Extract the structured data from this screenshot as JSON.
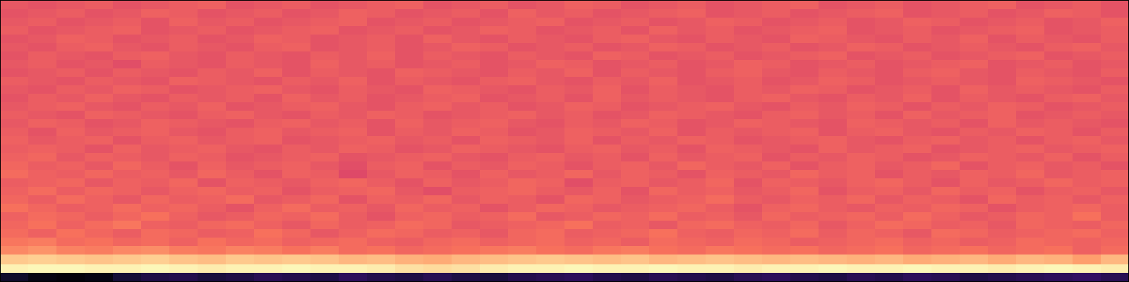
{
  "chart_data": {
    "type": "heatmap",
    "tick_labels": false,
    "xlim": [
      0,
      40
    ],
    "ylim": [
      0,
      100
    ],
    "zlim": [
      -80,
      0
    ],
    "y_edges": [
      0,
      3.5,
      6.5,
      10,
      13,
      16,
      19,
      22,
      25,
      28,
      31,
      34,
      37,
      40,
      43,
      46,
      49,
      52,
      55,
      58,
      61,
      64,
      67,
      70,
      73,
      76,
      79,
      82,
      85,
      88,
      91,
      94,
      97,
      100
    ],
    "cells": [
      [
        -74,
        -78,
        -79,
        -78,
        -72,
        -70,
        -69,
        -71,
        -70,
        -68,
        -69,
        -70,
        -67,
        -69,
        -70,
        -68,
        -70,
        -71,
        -69,
        -68,
        -67,
        -69,
        -70,
        -68,
        -69,
        -70,
        -68,
        -67,
        -69,
        -70,
        -68,
        -69,
        -67,
        -68,
        -70,
        -69,
        -68,
        -67,
        -66,
        -68
      ],
      [
        -2,
        -1,
        -1,
        -2,
        -2,
        -1,
        -2,
        -3,
        -2,
        -2,
        -1,
        -2,
        -2,
        -3,
        -5,
        -6,
        -5,
        -3,
        -2,
        -2,
        -1,
        -2,
        -2,
        -1,
        -2,
        -2,
        -3,
        -2,
        -2,
        -1,
        -2,
        -2,
        -1,
        -2,
        -2,
        -3,
        -2,
        -1,
        -2,
        -3
      ],
      [
        -9,
        -8,
        -9,
        -10,
        -9,
        -8,
        -10,
        -11,
        -9,
        -10,
        -9,
        -10,
        -12,
        -11,
        -13,
        -14,
        -12,
        -11,
        -10,
        -9,
        -10,
        -11,
        -10,
        -12,
        -11,
        -10,
        -11,
        -12,
        -11,
        -12,
        -13,
        -12,
        -14,
        -13,
        -12,
        -14,
        -12,
        -13,
        -16,
        -12
      ],
      [
        -20,
        -18,
        -21,
        -22,
        -20,
        -19,
        -22,
        -23,
        -21,
        -22,
        -24,
        -22,
        -25,
        -24,
        -26,
        -25,
        -24,
        -23,
        -22,
        -24,
        -25,
        -23,
        -22,
        -24,
        -25,
        -23,
        -24,
        -25,
        -24,
        -26,
        -25,
        -24,
        -26,
        -25,
        -24,
        -26,
        -25,
        -24,
        -27,
        -25
      ],
      [
        -23,
        -22,
        -25,
        -24,
        -26,
        -25,
        -27,
        -24,
        -26,
        -25,
        -27,
        -26,
        -25,
        -27,
        -28,
        -26,
        -25,
        -27,
        -26,
        -25,
        -27,
        -26,
        -28,
        -25,
        -26,
        -27,
        -25,
        -26,
        -28,
        -27,
        -26,
        -25,
        -27,
        -26,
        -28,
        -27,
        -25,
        -26,
        -27,
        -26
      ],
      [
        -25,
        -27,
        -24,
        -26,
        -28,
        -25,
        -26,
        -28,
        -27,
        -24,
        -26,
        -29,
        -27,
        -25,
        -26,
        -28,
        -27,
        -29,
        -26,
        -25,
        -28,
        -27,
        -26,
        -24,
        -27,
        -28,
        -26,
        -27,
        -25,
        -28,
        -26,
        -27,
        -29,
        -25,
        -26,
        -28,
        -27,
        -26,
        -25,
        -27
      ],
      [
        -26,
        -24,
        -27,
        -25,
        -23,
        -27,
        -28,
        -26,
        -25,
        -27,
        -29,
        -26,
        -28,
        -27,
        -25,
        -26,
        -29,
        -28,
        -27,
        -26,
        -24,
        -28,
        -27,
        -29,
        -26,
        -25,
        -27,
        -28,
        -26,
        -29,
        -27,
        -25,
        -26,
        -28,
        -27,
        -29,
        -26,
        -27,
        -28,
        -26
      ],
      [
        -27,
        -25,
        -26,
        -28,
        -26,
        -24,
        -27,
        -29,
        -28,
        -26,
        -27,
        -25,
        -28,
        -30,
        -27,
        -26,
        -28,
        -27,
        -25,
        -29,
        -28,
        -26,
        -27,
        -25,
        -28,
        -27,
        -29,
        -26,
        -28,
        -27,
        -26,
        -28,
        -25,
        -27,
        -29,
        -28,
        -26,
        -27,
        -24,
        -28
      ],
      [
        -24,
        -26,
        -28,
        -27,
        -25,
        -27,
        -26,
        -28,
        -30,
        -27,
        -25,
        -28,
        -27,
        -29,
        -26,
        -28,
        -27,
        -30,
        -28,
        -26,
        -27,
        -29,
        -28,
        -27,
        -26,
        -28,
        -30,
        -27,
        -26,
        -28,
        -29,
        -27,
        -28,
        -26,
        -27,
        -30,
        -28,
        -27,
        -26,
        -28
      ],
      [
        -26,
        -28,
        -25,
        -27,
        -29,
        -26,
        -28,
        -27,
        -25,
        -29,
        -28,
        -26,
        -30,
        -27,
        -28,
        -26,
        -29,
        -27,
        -28,
        -30,
        -26,
        -27,
        -29,
        -28,
        -27,
        -25,
        -28,
        -29,
        -27,
        -28,
        -26,
        -29,
        -27,
        -28,
        -30,
        -26,
        -28,
        -27,
        -29,
        -27
      ],
      [
        -27,
        -25,
        -28,
        -26,
        -27,
        -29,
        -27,
        -26,
        -28,
        -27,
        -30,
        -28,
        -27,
        -26,
        -29,
        -31,
        -28,
        -27,
        -26,
        -28,
        -29,
        -27,
        -30,
        -26,
        -28,
        -27,
        -29,
        -28,
        -26,
        -30,
        -28,
        -27,
        -29,
        -26,
        -28,
        -27,
        -30,
        -28,
        -27,
        -29
      ],
      [
        -28,
        -27,
        -26,
        -29,
        -27,
        -28,
        -26,
        -30,
        -27,
        -28,
        -29,
        -27,
        -26,
        -28,
        -30,
        -27,
        -29,
        -28,
        -26,
        -27,
        -31,
        -28,
        -27,
        -29,
        -28,
        -26,
        -30,
        -27,
        -28,
        -29,
        -27,
        -26,
        -28,
        -30,
        -27,
        -29,
        -28,
        -26,
        -28,
        -27
      ],
      [
        -25,
        -27,
        -28,
        -26,
        -28,
        -27,
        -29,
        -26,
        -28,
        -30,
        -27,
        -28,
        -32,
        -29,
        -27,
        -28,
        -30,
        -27,
        -29,
        -28,
        -26,
        -29,
        -27,
        -28,
        -30,
        -27,
        -28,
        -29,
        -26,
        -28,
        -27,
        -30,
        -28,
        -29,
        -27,
        -28,
        -26,
        -29,
        -28,
        -27
      ],
      [
        -26,
        -28,
        -27,
        -29,
        -26,
        -28,
        -30,
        -27,
        -29,
        -28,
        -27,
        -29,
        -31,
        -28,
        -27,
        -30,
        -28,
        -29,
        -27,
        -28,
        -30,
        -28,
        -27,
        -29,
        -26,
        -28,
        -29,
        -27,
        -30,
        -28,
        -27,
        -29,
        -28,
        -26,
        -30,
        -28,
        -27,
        -29,
        -28,
        -30
      ],
      [
        -27,
        -26,
        -29,
        -27,
        -28,
        -29,
        -27,
        -28,
        -30,
        -29,
        -28,
        -27,
        -30,
        -29,
        -28,
        -27,
        -29,
        -30,
        -28,
        -27,
        -29,
        -28,
        -30,
        -27,
        -29,
        -28,
        -27,
        -30,
        -28,
        -29,
        -27,
        -28,
        -30,
        -29,
        -27,
        -28,
        -29,
        -27,
        -30,
        -28
      ],
      [
        -28,
        -27,
        -28,
        -30,
        -27,
        -29,
        -28,
        -27,
        -29,
        -30,
        -28,
        -29,
        -27,
        -28,
        -30,
        -29,
        -27,
        -28,
        -29,
        -30,
        -28,
        -27,
        -29,
        -28,
        -30,
        -27,
        -28,
        -29,
        -30,
        -27,
        -29,
        -28,
        -27,
        -30,
        -29,
        -28,
        -27,
        -29,
        -28,
        -27
      ],
      [
        -27,
        -29,
        -28,
        -27,
        -30,
        -28,
        -27,
        -29,
        -28,
        -27,
        -30,
        -29,
        -28,
        -27,
        -29,
        -28,
        -30,
        -27,
        -28,
        -29,
        -27,
        -30,
        -28,
        -29,
        -27,
        -28,
        -30,
        -29,
        -28,
        -27,
        -29,
        -30,
        -28,
        -27,
        -29,
        -28,
        -30,
        -28,
        -27,
        -29
      ],
      [
        -28,
        -30,
        -27,
        -29,
        -28,
        -27,
        -29,
        -30,
        -28,
        -27,
        -29,
        -28,
        -27,
        -30,
        -28,
        -29,
        -27,
        -28,
        -30,
        -29,
        -27,
        -28,
        -29,
        -27,
        -30,
        -28,
        -29,
        -28,
        -27,
        -30,
        -28,
        -27,
        -29,
        -30,
        -28,
        -29,
        -27,
        -28,
        -30,
        -28
      ],
      [
        -29,
        -27,
        -28,
        -30,
        -29,
        -27,
        -28,
        -29,
        -30,
        -28,
        -27,
        -29,
        -28,
        -30,
        -27,
        -29,
        -28,
        -27,
        -29,
        -30,
        -28,
        -29,
        -27,
        -28,
        -30,
        -29,
        -27,
        -28,
        -29,
        -30,
        -27,
        -28,
        -29,
        -28,
        -30,
        -27,
        -29,
        -28,
        -29,
        -30
      ],
      [
        -28,
        -29,
        -30,
        -27,
        -28,
        -29,
        -30,
        -28,
        -27,
        -29,
        -30,
        -28,
        -29,
        -27,
        -28,
        -30,
        -29,
        -28,
        -27,
        -29,
        -28,
        -30,
        -29,
        -27,
        -28,
        -29,
        -30,
        -28,
        -27,
        -29,
        -28,
        -30,
        -27,
        -29,
        -28,
        -27,
        -30,
        -29,
        -28,
        -29
      ],
      [
        -29,
        -28,
        -27,
        -29,
        -30,
        -28,
        -29,
        -27,
        -30,
        -29,
        -28,
        -27,
        -29,
        -30,
        -28,
        -27,
        -29,
        -28,
        -30,
        -29,
        -27,
        -28,
        -30,
        -29,
        -28,
        -27,
        -29,
        -30,
        -28,
        -29,
        -27,
        -28,
        -30,
        -28,
        -29,
        -27,
        -28,
        -30,
        -29,
        -28
      ],
      [
        -30,
        -28,
        -29,
        -27,
        -29,
        -30,
        -28,
        -29,
        -28,
        -30,
        -27,
        -29,
        -28,
        -30,
        -29,
        -28,
        -27,
        -30,
        -29,
        -28,
        -30,
        -27,
        -29,
        -28,
        -29,
        -30,
        -28,
        -27,
        -29,
        -30,
        -28,
        -29,
        -27,
        -30,
        -28,
        -29,
        -30,
        -28,
        -27,
        -29
      ],
      [
        -29,
        -30,
        -28,
        -29,
        -27,
        -28,
        -30,
        -29,
        -28,
        -27,
        -29,
        -30,
        -28,
        -29,
        -30,
        -27,
        -28,
        -29,
        -30,
        -28,
        -29,
        -27,
        -30,
        -28,
        -29,
        -30,
        -28,
        -29,
        -27,
        -28,
        -30,
        -29,
        -28,
        -30,
        -27,
        -29,
        -28,
        -29,
        -30,
        -28
      ],
      [
        -28,
        -29,
        -30,
        -28,
        -29,
        -30,
        -27,
        -28,
        -29,
        -30,
        -28,
        -29,
        -27,
        -30,
        -28,
        -29,
        -30,
        -28,
        -27,
        -29,
        -30,
        -28,
        -29,
        -27,
        -30,
        -29,
        -28,
        -30,
        -29,
        -27,
        -28,
        -30,
        -29,
        -28,
        -29,
        -30,
        -27,
        -28,
        -29,
        -30
      ],
      [
        -30,
        -29,
        -28,
        -30,
        -28,
        -29,
        -30,
        -28,
        -29,
        -27,
        -30,
        -28,
        -29,
        -30,
        -27,
        -28,
        -29,
        -30,
        -28,
        -29,
        -27,
        -30,
        -28,
        -29,
        -30,
        -28,
        -27,
        -29,
        -30,
        -28,
        -29,
        -30,
        -28,
        -27,
        -29,
        -30,
        -28,
        -29,
        -30,
        -28
      ],
      [
        -29,
        -28,
        -30,
        -29,
        -31,
        -28,
        -29,
        -30,
        -28,
        -29,
        -30,
        -27,
        -29,
        -28,
        -30,
        -29,
        -28,
        -30,
        -29,
        -27,
        -28,
        -30,
        -29,
        -28,
        -30,
        -29,
        -27,
        -28,
        -30,
        -29,
        -28,
        -30,
        -29,
        -28,
        -27,
        -30,
        -29,
        -28,
        -30,
        -29
      ],
      [
        -30,
        -28,
        -29,
        -30,
        -28,
        -27,
        -29,
        -30,
        -28,
        -29,
        -30,
        -28,
        -29,
        -27,
        -30,
        -28,
        -29,
        -30,
        -28,
        -29,
        -30,
        -27,
        -28,
        -30,
        -29,
        -28,
        -30,
        -29,
        -28,
        -27,
        -30,
        -29,
        -28,
        -30,
        -29,
        -28,
        -27,
        -30,
        -29,
        -28
      ],
      [
        -29,
        -30,
        -28,
        -27,
        -29,
        -30,
        -28,
        -29,
        -30,
        -28,
        -27,
        -30,
        -29,
        -28,
        -30,
        -29,
        -27,
        -28,
        -30,
        -29,
        -28,
        -30,
        -29,
        -27,
        -28,
        -30,
        -29,
        -28,
        -30,
        -29,
        -27,
        -28,
        -30,
        -29,
        -28,
        -29,
        -30,
        -28,
        -27,
        -29
      ],
      [
        -30,
        -29,
        -27,
        -28,
        -30,
        -29,
        -28,
        -30,
        -29,
        -27,
        -28,
        -30,
        -29,
        -28,
        -30,
        -27,
        -29,
        -30,
        -28,
        -29,
        -30,
        -28,
        -27,
        -29,
        -30,
        -28,
        -29,
        -30,
        -27,
        -28,
        -29,
        -30,
        -28,
        -29,
        -27,
        -30,
        -28,
        -29,
        -30,
        -28
      ],
      [
        -28,
        -30,
        -29,
        -28,
        -27,
        -30,
        -29,
        -28,
        -30,
        -29,
        -28,
        -27,
        -30,
        -29,
        -28,
        -30,
        -29,
        -27,
        -28,
        -30,
        -29,
        -28,
        -30,
        -27,
        -29,
        -28,
        -30,
        -29,
        -28,
        -27,
        -30,
        -29,
        -28,
        -30,
        -29,
        -28,
        -27,
        -30,
        -29,
        -28
      ],
      [
        -29,
        -28,
        -30,
        -29,
        -28,
        -30,
        -27,
        -29,
        -28,
        -30,
        -29,
        -28,
        -27,
        -30,
        -29,
        -28,
        -30,
        -29,
        -28,
        -27,
        -30,
        -29,
        -28,
        -30,
        -29,
        -27,
        -28,
        -30,
        -29,
        -28,
        -30,
        -29,
        -27,
        -28,
        -30,
        -29,
        -28,
        -30,
        -29,
        -27
      ],
      [
        -30,
        -29,
        -28,
        -30,
        -29,
        -27,
        -28,
        -30,
        -29,
        -28,
        -30,
        -29,
        -27,
        -28,
        -30,
        -29,
        -28,
        -30,
        -27,
        -29,
        -28,
        -30,
        -29,
        -28,
        -27,
        -30,
        -29,
        -28,
        -30,
        -29,
        -28,
        -27,
        -30,
        -29,
        -28,
        -30,
        -29,
        -27,
        -28,
        -30
      ],
      [
        -29,
        -30,
        -29,
        -28,
        -30,
        -29,
        -28,
        -27,
        -30,
        -29,
        -28,
        -30,
        -29,
        -28,
        -27,
        -30,
        -29,
        -28,
        -30,
        -29,
        -27,
        -28,
        -30,
        -29,
        -28,
        -30,
        -29,
        -28,
        -27,
        -30,
        -29,
        -28,
        -30,
        -29,
        -28,
        -27,
        -30,
        -29,
        -28,
        -30
      ]
    ]
  }
}
